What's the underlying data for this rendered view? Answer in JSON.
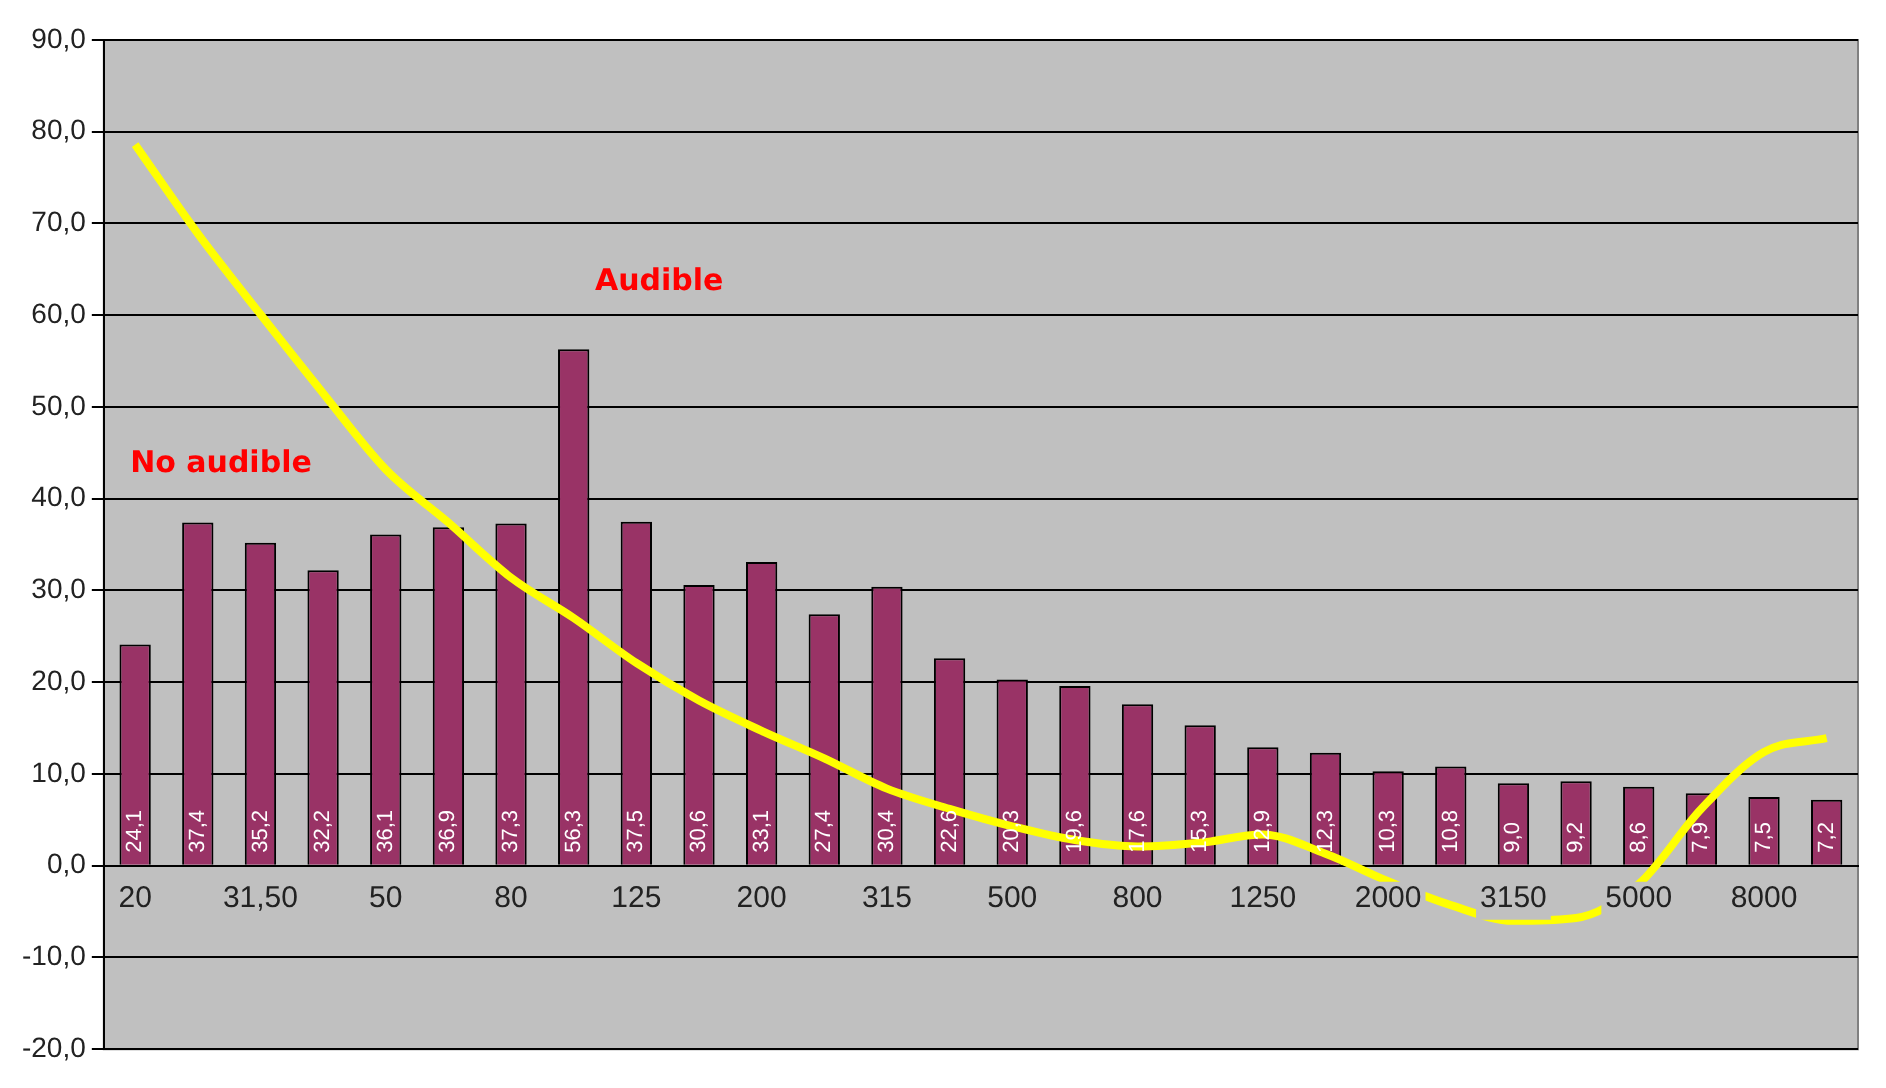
{
  "chart_data": {
    "type": "bar",
    "categories": [
      "20",
      null,
      "31,50",
      null,
      "50",
      null,
      "80",
      null,
      "125",
      null,
      "200",
      null,
      "315",
      null,
      "500",
      null,
      "800",
      null,
      "1250",
      null,
      "2000",
      null,
      "3150",
      null,
      "5000",
      null,
      "8000",
      null
    ],
    "series": [
      {
        "color": "#993366",
        "values": [
          24.1,
          37.4,
          35.2,
          32.2,
          36.1,
          36.9,
          37.3,
          56.3,
          37.5,
          30.6,
          33.1,
          27.4,
          30.4,
          22.6,
          20.3,
          19.6,
          17.6,
          15.3,
          12.9,
          12.3,
          10.3,
          10.8,
          9.0,
          9.2,
          8.6,
          7.9,
          7.5,
          7.2
        ],
        "value_labels": [
          "24,1",
          "37,4",
          "35,2",
          "32,2",
          "36,1",
          "36,9",
          "37,3",
          "56,3",
          "37,5",
          "30,6",
          "33,1",
          "27,4",
          "30,4",
          "22,6",
          "20,3",
          "19,6",
          "17,6",
          "15,3",
          "12,9",
          "12,3",
          "10,3",
          "10,8",
          "9,0",
          "9,2",
          "8,6",
          "7,9",
          "7,5",
          "7,2"
        ]
      },
      {
        "type": "line",
        "color": "#ffff00",
        "values": [
          78.6,
          68.9,
          60.1,
          51.5,
          43.2,
          37.4,
          31.4,
          27.0,
          22.1,
          18.0,
          14.7,
          11.7,
          8.4,
          6.2,
          4.3,
          2.8,
          2.1,
          2.5,
          3.4,
          1.3,
          -1.7,
          -4.3,
          -6.0,
          -5.7,
          -2.0,
          6.2,
          12.4,
          13.9
        ]
      }
    ],
    "ylim": [
      -20,
      90
    ],
    "yticks": [
      {
        "value": -20,
        "label": "-20,0"
      },
      {
        "value": -10,
        "label": "-10,0"
      },
      {
        "value": 0,
        "label": "0,0"
      },
      {
        "value": 10,
        "label": "10,0"
      },
      {
        "value": 20,
        "label": "20,0"
      },
      {
        "value": 30,
        "label": "30,0"
      },
      {
        "value": 40,
        "label": "40,0"
      },
      {
        "value": 50,
        "label": "50,0"
      },
      {
        "value": 60,
        "label": "60,0"
      },
      {
        "value": 70,
        "label": "70,0"
      },
      {
        "value": 80,
        "label": "80,0"
      },
      {
        "value": 90,
        "label": "90,0"
      }
    ],
    "annotations": [
      "Audible",
      "No audible"
    ],
    "grid": "y",
    "legend": false,
    "marker": "none"
  }
}
